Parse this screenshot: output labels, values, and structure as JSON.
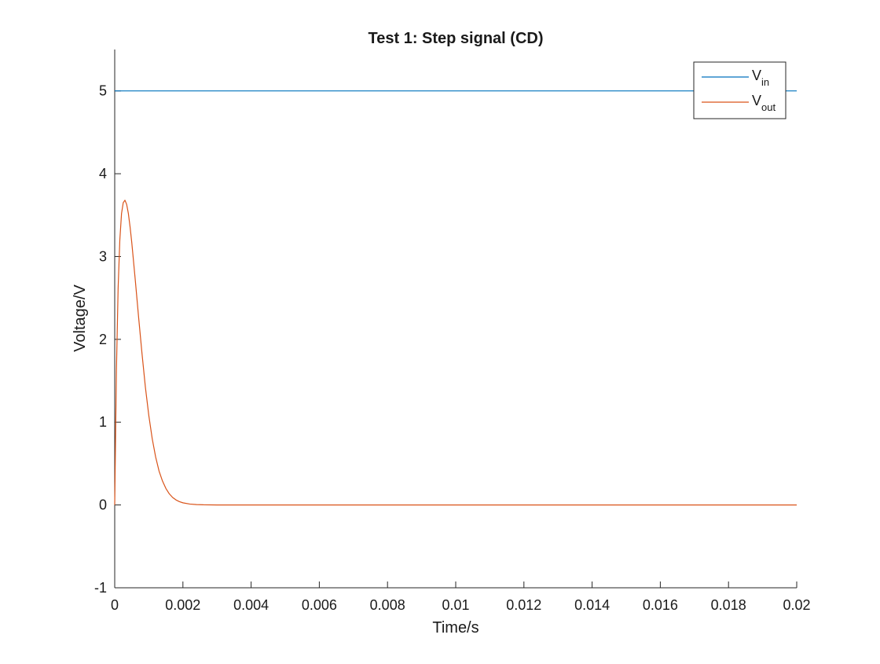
{
  "chart_data": {
    "type": "line",
    "title": "Test 1: Step signal (CD)",
    "xlabel": "Time/s",
    "ylabel": "Voltage/V",
    "xlim": [
      0,
      0.02
    ],
    "ylim": [
      -1,
      5.5
    ],
    "xticks": [
      0,
      0.002,
      0.004,
      0.006,
      0.008,
      0.01,
      0.012,
      0.014,
      0.016,
      0.018,
      0.02
    ],
    "xtick_labels": [
      "0",
      "0.002",
      "0.004",
      "0.006",
      "0.008",
      "0.01",
      "0.012",
      "0.014",
      "0.016",
      "0.018",
      "0.02"
    ],
    "yticks": [
      -1,
      0,
      1,
      2,
      3,
      4,
      5
    ],
    "ytick_labels": [
      "-1",
      "0",
      "1",
      "2",
      "3",
      "4",
      "5"
    ],
    "grid": false,
    "legend_position": "top-right",
    "series": [
      {
        "name": "V_in",
        "legend_main": "V",
        "legend_sub": "in",
        "color": "#0072bd",
        "x": [
          0,
          0.02
        ],
        "y": [
          5,
          5
        ]
      },
      {
        "name": "V_out",
        "legend_main": "V",
        "legend_sub": "out",
        "color": "#d95319",
        "x": [
          0,
          5e-05,
          0.0001,
          0.00015,
          0.0002,
          0.00025,
          0.0003,
          0.00035,
          0.0004,
          0.00045,
          0.0005,
          0.0006,
          0.0007,
          0.0008,
          0.0009,
          0.001,
          0.0011,
          0.0012,
          0.0013,
          0.0014,
          0.0015,
          0.0016,
          0.0017,
          0.0018,
          0.0019,
          0.002,
          0.0022,
          0.0024,
          0.0026,
          0.0028,
          0.003,
          0.0035,
          0.004,
          0.006,
          0.01,
          0.015,
          0.02
        ],
        "y": [
          0,
          1.62,
          2.62,
          3.2,
          3.52,
          3.65,
          3.68,
          3.63,
          3.52,
          3.36,
          3.17,
          2.73,
          2.27,
          1.83,
          1.42,
          1.08,
          0.8,
          0.58,
          0.41,
          0.29,
          0.2,
          0.135,
          0.09,
          0.06,
          0.04,
          0.026,
          0.011,
          0.005,
          0.002,
          0.001,
          0.0,
          0.0,
          0.0,
          0.0,
          0.0,
          0.0,
          0.0
        ]
      }
    ]
  }
}
